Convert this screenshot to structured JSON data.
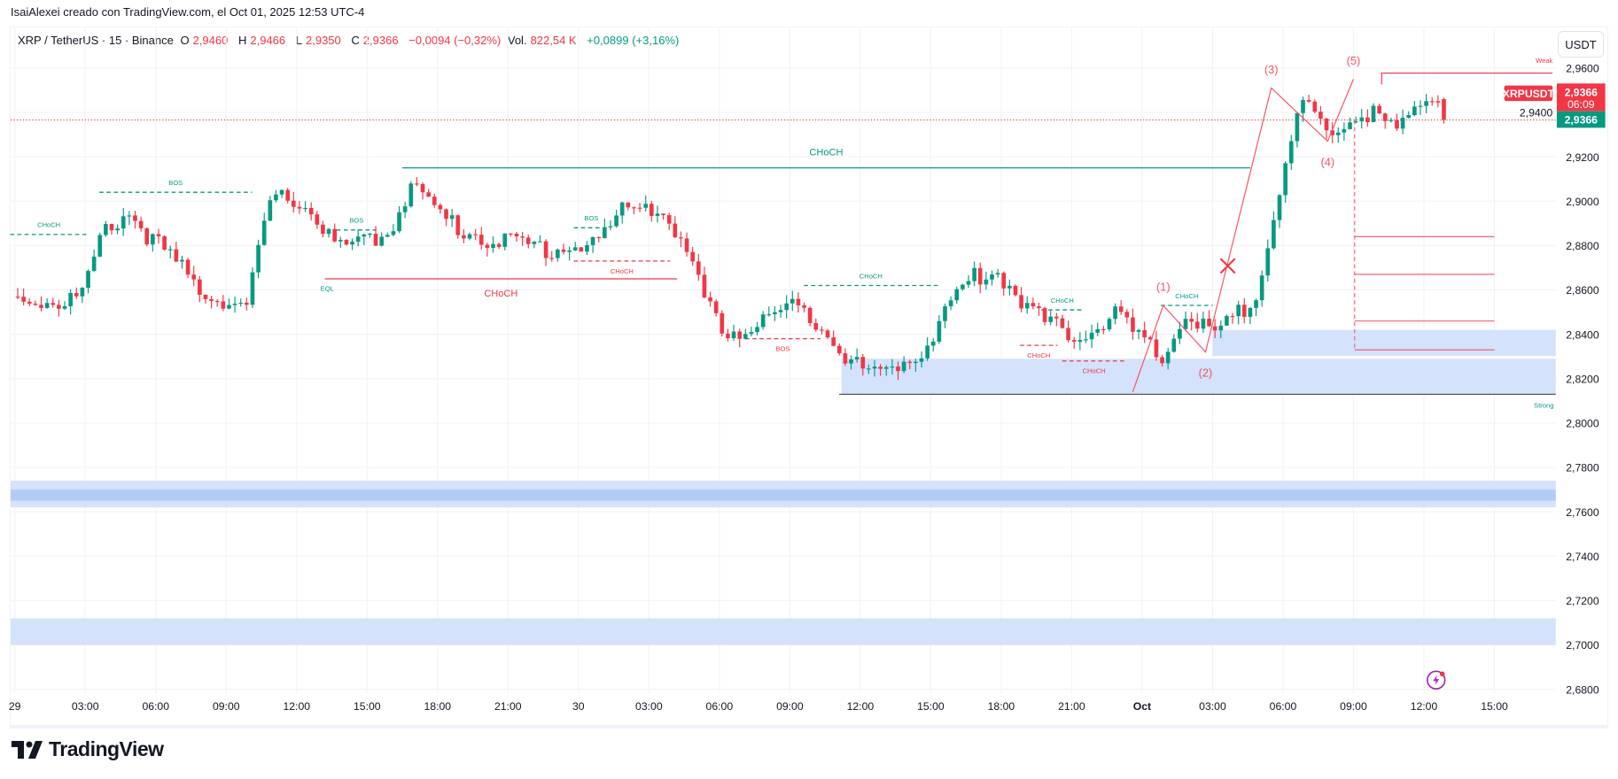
{
  "header": {
    "attribution": "IsaiAlexei creado con TradingView.com, el Oct 01, 2025 12:53 UTC-4",
    "symbol": "XRP / TetherUS · 15 · Binance",
    "o_label": "O",
    "o_value": "2,9460",
    "h_label": "H",
    "h_value": "2,9466",
    "l_label": "L",
    "l_value": "2,9350",
    "c_label": "C",
    "c_value": "2,9366",
    "change": "−0,0094 (−0,32%)",
    "vol_label": "Vol.",
    "vol_value": "822,54 K",
    "vol_change": "+0,0899 (+3,16%)"
  },
  "currency_button": "USDT",
  "price_tags": {
    "symbol_tag": "XRPUSDT",
    "last_price": "2,9366",
    "countdown": "06:09",
    "current_price": "2,9366"
  },
  "brand": "TradingView",
  "colors": {
    "up": "#089981",
    "down": "#f23645",
    "zone": "#d4e2fc",
    "zone_dark": "#b2ccf7",
    "wave": "#f7525f",
    "grid": "#f2f3f5"
  },
  "chart_data": {
    "type": "candlestick",
    "title": "XRP / TetherUS · 15 · Binance",
    "interval_minutes": 15,
    "x_start": "Sep 29 00:00",
    "hourly_close_anchors": [
      2.856,
      2.854,
      2.858,
      2.888,
      2.895,
      2.882,
      2.872,
      2.86,
      2.856,
      2.852,
      2.9,
      2.902,
      2.892,
      2.878,
      2.882,
      2.885,
      2.908,
      2.896,
      2.888,
      2.884,
      2.882,
      2.88,
      2.878,
      2.88,
      2.882,
      2.895,
      2.9,
      2.892,
      2.868,
      2.845,
      2.84,
      2.846,
      2.852,
      2.85,
      2.838,
      2.825,
      2.822,
      2.828,
      2.835,
      2.855,
      2.866,
      2.868,
      2.856,
      2.845,
      2.84,
      2.842,
      2.85,
      2.838,
      2.828,
      2.85,
      2.84,
      2.845,
      2.86,
      2.905,
      2.945,
      2.928,
      2.938,
      2.94,
      2.93,
      2.945,
      2.946
    ],
    "last_candle": {
      "open": 2.946,
      "high": 2.9466,
      "low": 2.935,
      "close": 2.9366
    },
    "ylim": [
      2.68,
      2.97
    ],
    "y_ticks": [
      "2,9600",
      "2,9400",
      "2,9200",
      "2,9000",
      "2,8800",
      "2,8600",
      "2,8400",
      "2,8200",
      "2,8000",
      "2,7800",
      "2,7600",
      "2,7400",
      "2,7200",
      "2,7000",
      "2,6800"
    ],
    "y_tick_values": [
      2.96,
      2.94,
      2.92,
      2.9,
      2.88,
      2.86,
      2.84,
      2.82,
      2.8,
      2.78,
      2.76,
      2.74,
      2.72,
      2.7,
      2.68
    ],
    "x_ticks": [
      "29",
      "03:00",
      "06:00",
      "09:00",
      "12:00",
      "15:00",
      "18:00",
      "21:00",
      "30",
      "03:00",
      "06:00",
      "09:00",
      "12:00",
      "15:00",
      "18:00",
      "21:00",
      "Oct",
      "03:00",
      "06:00",
      "09:00",
      "12:00",
      "15:00"
    ],
    "x_tick_hours": [
      0,
      3,
      6,
      9,
      12,
      15,
      18,
      21,
      24,
      27,
      30,
      33,
      36,
      39,
      42,
      45,
      48,
      51,
      54,
      57,
      60,
      63
    ],
    "grid": true,
    "structure_lines": [
      {
        "label": "CHoCH",
        "price": 2.885,
        "from_h": -0.2,
        "to_h": 3.1,
        "color": "up",
        "style": "dashed"
      },
      {
        "label": "BOS",
        "price": 2.904,
        "from_h": 3.6,
        "to_h": 10.1,
        "color": "up",
        "style": "dashed"
      },
      {
        "label": "BOS",
        "price": 2.887,
        "from_h": 13.7,
        "to_h": 15.4,
        "color": "up",
        "style": "dashed"
      },
      {
        "label": "CHoCH",
        "price": 2.865,
        "from_h": 13.2,
        "to_h": 28.2,
        "color": "down",
        "style": "solid",
        "big": true
      },
      {
        "label": "CHoCH",
        "price": 2.915,
        "from_h": 16.5,
        "to_h": 52.6,
        "color": "up",
        "style": "solid",
        "above": true
      },
      {
        "label": "BOS",
        "price": 2.888,
        "from_h": 23.8,
        "to_h": 25.3,
        "color": "up",
        "style": "dashed"
      },
      {
        "label": "CHoCH",
        "price": 2.873,
        "from_h": 23.8,
        "to_h": 27.9,
        "color": "down",
        "style": "dashed",
        "below": true
      },
      {
        "label": "CHoCH",
        "price": 2.862,
        "from_h": 33.6,
        "to_h": 39.3,
        "color": "up",
        "style": "dashed"
      },
      {
        "label": "BOS",
        "price": 2.838,
        "from_h": 31.1,
        "to_h": 34.3,
        "color": "down",
        "style": "dashed",
        "below": true
      },
      {
        "label": "CHoCH",
        "price": 2.851,
        "from_h": 43.7,
        "to_h": 45.5,
        "color": "up",
        "style": "dashed"
      },
      {
        "label": "CHoCH",
        "price": 2.835,
        "from_h": 42.8,
        "to_h": 44.4,
        "color": "down",
        "style": "dashed",
        "below": true
      },
      {
        "label": "CHoCH",
        "price": 2.828,
        "from_h": 44.6,
        "to_h": 47.3,
        "color": "down",
        "style": "dashed",
        "below": true
      },
      {
        "label": "CHoCH",
        "price": 2.853,
        "from_h": 48.8,
        "to_h": 51.0,
        "color": "up",
        "style": "dashed"
      }
    ],
    "eql_label": "EQL",
    "zones": [
      {
        "top": 2.829,
        "bottom": 2.813,
        "from_h": 35.2
      },
      {
        "top": 2.842,
        "bottom": 2.83,
        "from_h": 51.0
      },
      {
        "top": 2.774,
        "bottom": 2.762,
        "from_h": -1,
        "inner": [
          2.77,
          2.765
        ]
      },
      {
        "top": 2.712,
        "bottom": 2.7,
        "from_h": -1
      }
    ],
    "strong_low": {
      "label": "Strong",
      "price": 2.813,
      "from_h": 35.1
    },
    "weak_high": {
      "label": "Weak",
      "price": 2.9577,
      "from_h": 58.2
    },
    "elliott_wave": [
      {
        "label": "",
        "h": 47.6,
        "price": 2.814
      },
      {
        "label": "(1)",
        "h": 48.9,
        "price": 2.853
      },
      {
        "label": "(2)",
        "h": 50.7,
        "price": 2.832
      },
      {
        "label": "(3)",
        "h": 53.5,
        "price": 2.951
      },
      {
        "label": "(4)",
        "h": 55.9,
        "price": 2.927
      },
      {
        "label": "(5)",
        "h": 57.0,
        "price": 2.955
      }
    ],
    "target_levels": [
      2.884,
      2.867,
      2.846,
      2.833
    ],
    "target_from_h": 57.05,
    "target_to_h": 63.0,
    "current_price": 2.9366
  }
}
